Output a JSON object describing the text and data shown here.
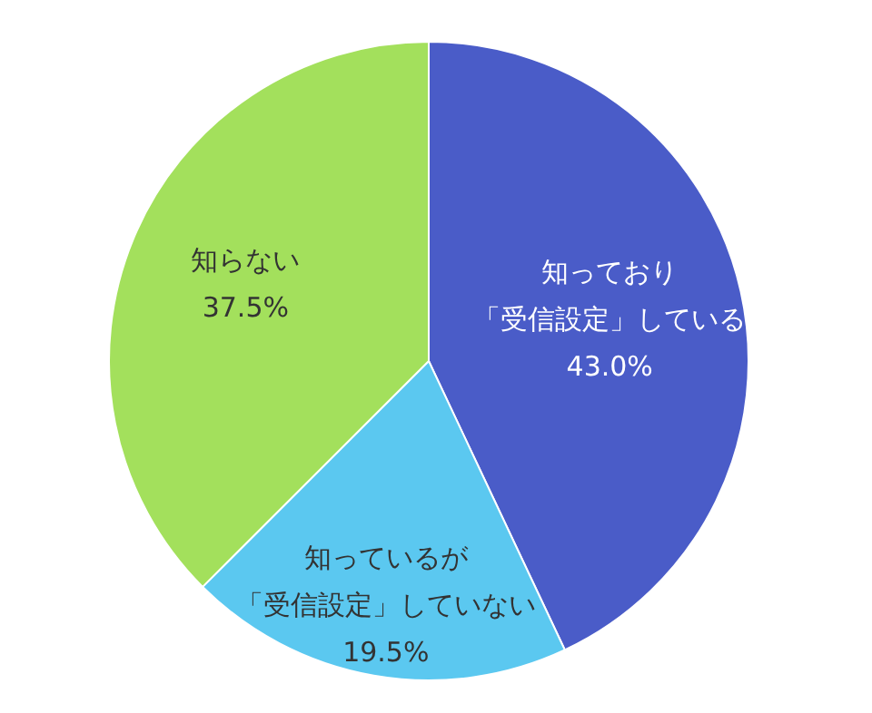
{
  "chart_data": {
    "type": "pie",
    "categories": [
      "知っており「受信設定」している",
      "知っているが「受信設定」していない",
      "知らない"
    ],
    "values": [
      43.0,
      19.5,
      37.5
    ],
    "colors": [
      "#4a5cc8",
      "#5bc8f0",
      "#a3e05c"
    ],
    "value_labels": [
      "43.0%",
      "19.5%",
      "37.5%"
    ]
  }
}
